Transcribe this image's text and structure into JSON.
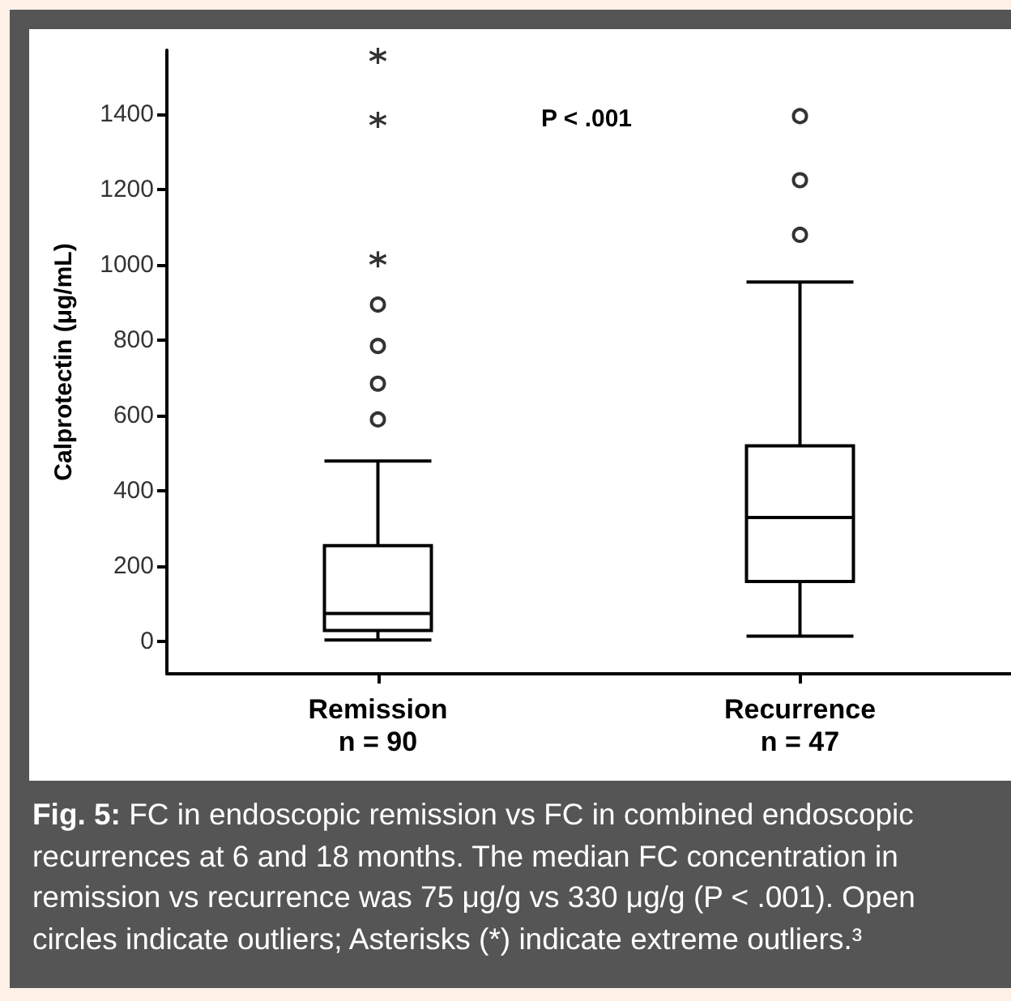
{
  "chart_data": {
    "type": "box",
    "ylabel": "Calprotectin (μg/mL)",
    "categories": [
      "Remission\nn = 90",
      "Recurrence\nn = 47"
    ],
    "ylim": [
      -85,
      1570
    ],
    "yticks": [
      0,
      200,
      400,
      600,
      800,
      1000,
      1200,
      1400
    ],
    "series": [
      {
        "color": "#000000",
        "boxes": [
          {
            "low": 5,
            "q1": 30,
            "median": 75,
            "q3": 255,
            "high": 480,
            "outliers": [
              590,
              685,
              785,
              895
            ]
          },
          {
            "low": 15,
            "q1": 160,
            "median": 330,
            "q3": 520,
            "high": 955,
            "outliers": [
              1080,
              1225,
              1395
            ]
          }
        ]
      },
      {
        "type": "scatter",
        "marker": "cross",
        "color": "#000000",
        "x": [
          "Remission\nn = 90",
          "Remission\nn = 90",
          "Remission\nn = 90"
        ],
        "values": [
          1015,
          1385,
          1555
        ]
      }
    ],
    "annotations": [
      "P < .001",
      "Fig. 5: FC in endoscopic remission vs FC in combined endoscopic recurrences at 6 and 18 months. The median FC concentration in remission vs recurrence was 75 μg/g vs 330 μg/g (P < .001). Open circles indicate outliers; Asterisks (*) indicate extreme outliers.³"
    ]
  }
}
